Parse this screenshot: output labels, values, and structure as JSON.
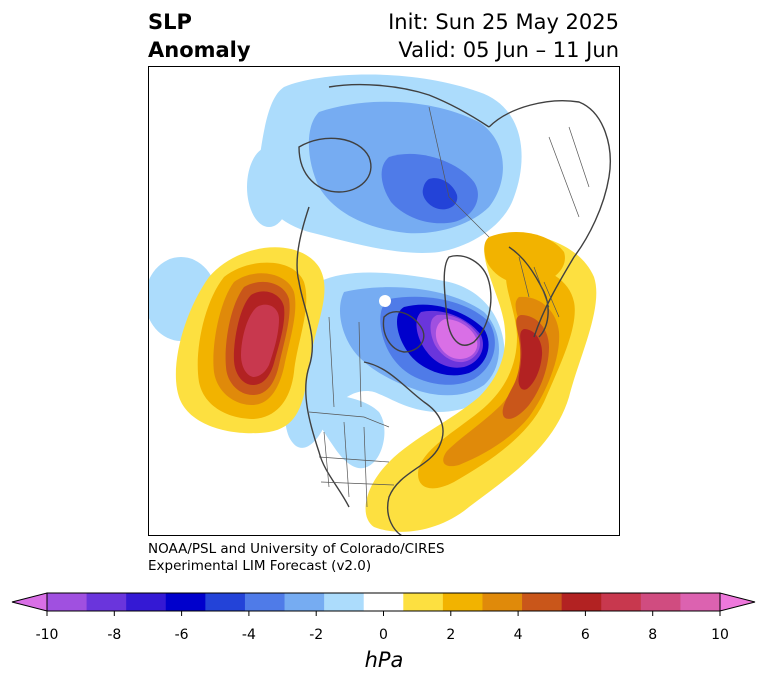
{
  "title": {
    "left_line1": "SLP",
    "left_line2": "Anomaly",
    "right_line1": "Init: Sun 25 May 2025",
    "right_line2": "Valid: 05 Jun – 11 Jun"
  },
  "credit": {
    "line1": "NOAA/PSL and University of Colorado/CIRES",
    "line2": "Experimental LIM Forecast (v2.0)"
  },
  "colorbar": {
    "unit": "hPa",
    "tick_labels": [
      "-10",
      "-8",
      "-6",
      "-4",
      "-2",
      "0",
      "2",
      "4",
      "6",
      "8",
      "10"
    ],
    "colors": [
      "#d96fe6",
      "#a050e0",
      "#6a35dc",
      "#3419d4",
      "#0000cc",
      "#2343d8",
      "#4f7be8",
      "#76acf2",
      "#acdcfc",
      "#ffffff",
      "#fde040",
      "#f2b300",
      "#e08a0a",
      "#c9561a",
      "#b22222",
      "#c8384e",
      "#d04c80",
      "#dc62b0",
      "#ee78dc"
    ]
  },
  "map_features": {
    "anomalies": [
      {
        "name": "north-pacific-high",
        "color": "#c8384e"
      },
      {
        "name": "hudson-bay-low",
        "color": "#d96fe6"
      },
      {
        "name": "north-atlantic-high",
        "color": "#b22222"
      },
      {
        "name": "arctic-low",
        "color": "#2343d8"
      }
    ]
  }
}
